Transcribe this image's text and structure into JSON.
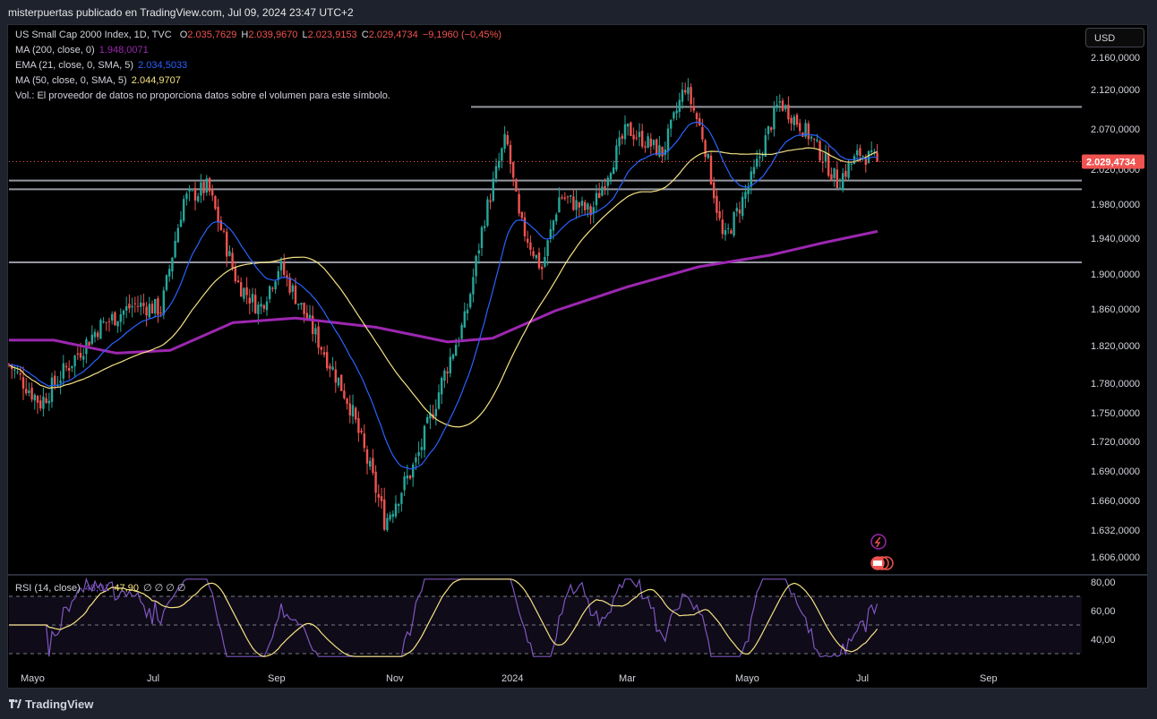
{
  "header": {
    "published": "misterpuertas publicado en TradingView.com, Jul 09, 2024 23:47 UTC+2"
  },
  "legend": {
    "symbol": "US Small Cap 2000 Index, 1D, TVC",
    "o_label": "O",
    "o_value": "2.035,7629",
    "h_label": "H",
    "h_value": "2.039,9670",
    "l_label": "L",
    "l_value": "2.023,9153",
    "c_label": "C",
    "c_value": "2.029,4734",
    "change": "−9,1960 (−0,45%)",
    "ma200_label": "MA (200, close, 0)",
    "ma200_value": "1.948,0071",
    "ema21_label": "EMA (21, close, 0, SMA, 5)",
    "ema21_value": "2.034,5033",
    "ma50_label": "MA (50, close, 0, SMA, 5)",
    "ma50_value": "2.044,9707",
    "vol_text": "Vol.: El proveedor de datos no proporciona datos sobre el volumen para este símbolo."
  },
  "rsi_legend": {
    "label": "RSI (14, close)",
    "rsi_value": "48,01",
    "ma_value": "47,90",
    "extras": "∅ ∅ ∅ ∅"
  },
  "currency_button": "USD",
  "price_label": "2.029,4734",
  "footer": {
    "brand": "TradingView"
  },
  "colors": {
    "up": "#26a69a",
    "down": "#ef5350",
    "ma200": "#9c27b0",
    "ema21": "#2962ff",
    "ma50": "#f5e283",
    "rsi": "#7e57c2",
    "level_lines": "#9598a1"
  },
  "chart_data": {
    "type": "candlestick",
    "y_ticks": [
      "2.160,0000",
      "2.120,0000",
      "2.070,0000",
      "2.020,0000",
      "1.980,0000",
      "1.940,0000",
      "1.900,0000",
      "1.860,0000",
      "1.820,0000",
      "1.780,0000",
      "1.750,0000",
      "1.720,0000",
      "1.690,0000",
      "1.660,0000",
      "1.632,0000",
      "1.606,0000"
    ],
    "y_tick_values": [
      2160,
      2120,
      2070,
      2020,
      1980,
      1940,
      1900,
      1860,
      1820,
      1780,
      1750,
      1720,
      1690,
      1660,
      1632,
      1606
    ],
    "x_ticks": [
      "Mayo",
      "Jul",
      "Sep",
      "Nov",
      "2024",
      "Mar",
      "Mayo",
      "Jul",
      "Sep"
    ],
    "last_close": 2029.4734,
    "horizontal_levels": [
      2098,
      2007,
      1997,
      1913
    ],
    "key_points": [
      {
        "date": "Apr 2023",
        "close": 1790
      },
      {
        "date": "Jun 2023",
        "close": 1865
      },
      {
        "date": "Aug 2023",
        "close": 2000
      },
      {
        "date": "Oct 2023",
        "close": 1640
      },
      {
        "date": "Dec 2023",
        "close": 2060
      },
      {
        "date": "Jan 2024",
        "close": 1925
      },
      {
        "date": "Mar 2024",
        "close": 2125
      },
      {
        "date": "Apr 2024",
        "close": 1935
      },
      {
        "date": "May 2024",
        "close": 2105
      },
      {
        "date": "Jul 2024",
        "close": 2029
      }
    ],
    "rsi_ticks": [
      "80,00",
      "60,00",
      "40,00"
    ],
    "rsi_tick_values": [
      80,
      60,
      40
    ],
    "rsi_band": [
      70,
      30
    ]
  }
}
